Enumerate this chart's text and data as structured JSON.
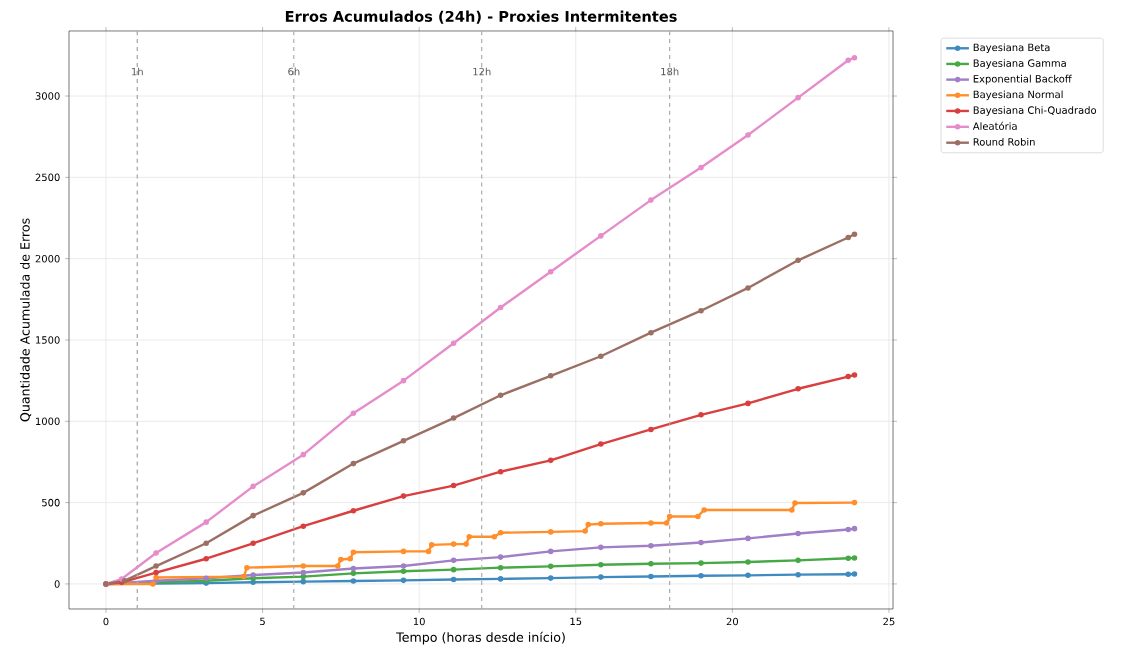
{
  "chart_data": {
    "type": "line",
    "title": "Erros Acumulados (24h) - Proxies Intermitentes",
    "xlabel": "Tempo (horas desde início)",
    "ylabel": "Quantidade Acumulada de Erros",
    "xlim": [
      -1.18,
      25.13
    ],
    "ylim": [
      -154,
      3400
    ],
    "xticks": [
      0,
      5,
      10,
      15,
      20,
      25
    ],
    "yticks": [
      0,
      500,
      1000,
      1500,
      2000,
      2500,
      3000
    ],
    "grid": true,
    "legend": "top right",
    "marker": "circle",
    "line_style": "solid",
    "ref_lines": [
      {
        "axis": "x",
        "value": 1,
        "label": "1h",
        "color": "#aaaaaa",
        "line_style": "dashed"
      },
      {
        "axis": "x",
        "value": 6,
        "label": "6h",
        "color": "#aaaaaa",
        "line_style": "dashed"
      },
      {
        "axis": "x",
        "value": 12,
        "label": "12h",
        "color": "#aaaaaa",
        "line_style": "dashed"
      },
      {
        "axis": "x",
        "value": 18,
        "label": "18h",
        "color": "#aaaaaa",
        "line_style": "dashed"
      }
    ],
    "series": [
      {
        "name": "Bayesiana Beta",
        "color": "#3f8bc0",
        "x": [
          0,
          1.6,
          3.2,
          4.7,
          6.3,
          7.9,
          9.5,
          11.1,
          12.6,
          14.2,
          15.8,
          17.4,
          19.0,
          20.5,
          22.1,
          23.7,
          23.9
        ],
        "values": [
          0,
          null,
          5,
          10,
          14,
          18,
          22,
          27,
          31,
          36,
          42,
          46,
          50,
          53,
          57,
          60,
          61
        ]
      },
      {
        "name": "Bayesiana Gamma",
        "color": "#46a946",
        "x": [
          0,
          1.6,
          3.2,
          4.7,
          6.3,
          7.9,
          9.5,
          11.1,
          12.6,
          14.2,
          15.8,
          17.4,
          19.0,
          20.5,
          22.1,
          23.7,
          23.9
        ],
        "values": [
          0,
          null,
          20,
          35,
          45,
          65,
          78,
          88,
          100,
          108,
          118,
          124,
          128,
          135,
          145,
          158,
          160
        ]
      },
      {
        "name": "Exponential Backoff",
        "color": "#a07fc6",
        "x": [
          0,
          1.6,
          3.2,
          4.7,
          6.3,
          7.9,
          9.5,
          11.1,
          12.6,
          14.2,
          15.8,
          17.4,
          19.0,
          20.5,
          22.1,
          23.7,
          23.9
        ],
        "values": [
          0,
          20,
          35,
          55,
          70,
          95,
          110,
          145,
          165,
          200,
          225,
          235,
          255,
          280,
          310,
          335,
          340
        ]
      },
      {
        "name": "Bayesiana Normal",
        "color": "#ff8e2b",
        "x": [
          0,
          1.5,
          1.6,
          4.4,
          4.5,
          6.3,
          7.4,
          7.5,
          7.8,
          7.9,
          9.5,
          10.3,
          10.4,
          11.1,
          11.5,
          11.6,
          12.4,
          12.6,
          14.2,
          15.3,
          15.4,
          15.8,
          17.4,
          17.9,
          18.0,
          18.9,
          19.1,
          21.9,
          22.0,
          23.9
        ],
        "values": [
          0,
          0,
          40,
          45,
          100,
          110,
          110,
          150,
          155,
          195,
          200,
          200,
          240,
          245,
          245,
          290,
          290,
          315,
          320,
          325,
          365,
          370,
          375,
          375,
          415,
          415,
          455,
          455,
          498,
          500
        ]
      },
      {
        "name": "Bayesiana Chi-Quadrado",
        "color": "#d93f3f",
        "x": [
          0,
          0.5,
          1.6,
          3.2,
          4.7,
          6.3,
          7.9,
          9.5,
          11.1,
          12.6,
          14.2,
          15.8,
          17.4,
          19.0,
          20.5,
          22.1,
          23.7,
          23.9
        ],
        "values": [
          0,
          10,
          70,
          155,
          250,
          355,
          450,
          540,
          605,
          690,
          760,
          860,
          950,
          1040,
          1110,
          1200,
          1275,
          1285
        ]
      },
      {
        "name": "Aleatória",
        "color": "#e68ccb",
        "x": [
          0,
          0.5,
          1.6,
          3.2,
          4.7,
          6.3,
          7.9,
          9.5,
          11.1,
          12.6,
          14.2,
          15.8,
          17.4,
          19.0,
          20.5,
          22.1,
          23.7,
          23.9
        ],
        "values": [
          0,
          30,
          190,
          380,
          600,
          795,
          1050,
          1250,
          1480,
          1700,
          1920,
          2140,
          2360,
          2560,
          2760,
          2990,
          3220,
          3235
        ]
      },
      {
        "name": "Round Robin",
        "color": "#9c6f64",
        "x": [
          0,
          0.6,
          1.6,
          3.2,
          4.7,
          6.3,
          7.9,
          9.5,
          11.1,
          12.6,
          14.2,
          15.8,
          17.4,
          19.0,
          20.5,
          22.1,
          23.7,
          23.9
        ],
        "values": [
          0,
          20,
          110,
          250,
          420,
          560,
          740,
          880,
          1020,
          1160,
          1280,
          1400,
          1545,
          1680,
          1820,
          1990,
          2130,
          2150
        ]
      }
    ]
  }
}
